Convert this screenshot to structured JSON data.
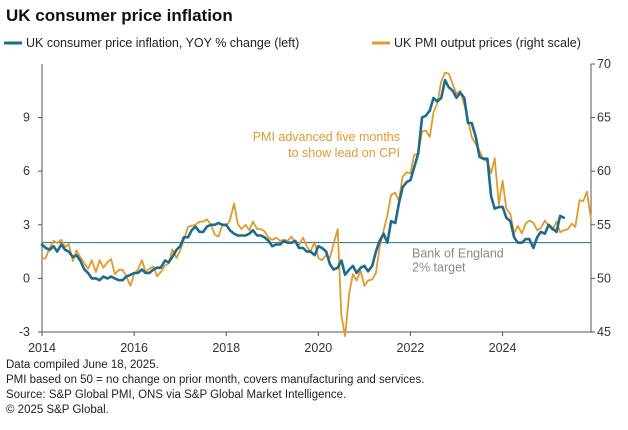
{
  "title": "UK consumer price inflation",
  "footer": {
    "line1": "Data compiled June 18, 2025.",
    "line2": "PMI based on 50 = no change on prior month, covers manufacturing and services.",
    "line3": "Source: S&P Global PMI,  ONS via S&P Global Market Intelligence.",
    "line4": "© 2025 S&P Global."
  },
  "colors": {
    "cpi": "#1e6b8c",
    "pmi": "#e09a2c",
    "ref": "#1e6b8c",
    "annotation": "#e09a2c",
    "ref_text": "#8a8a8a"
  },
  "chart_data": {
    "type": "line",
    "title": "UK consumer price inflation",
    "x_range": [
      2014.0,
      2025.92
    ],
    "x_ticks": [
      2014,
      2016,
      2018,
      2020,
      2022,
      2024
    ],
    "x_tick_labels": [
      "2014",
      "2016",
      "2018",
      "2020",
      "2022",
      "2024"
    ],
    "y_left": {
      "range": [
        -3,
        12
      ],
      "ticks": [
        -3,
        0,
        3,
        6,
        9
      ],
      "tick_labels": [
        "-3",
        "0",
        "3",
        "6",
        "9"
      ]
    },
    "y_right": {
      "range": [
        45,
        70
      ],
      "ticks": [
        45,
        50,
        55,
        60,
        65,
        70
      ],
      "tick_labels": [
        "45",
        "50",
        "55",
        "60",
        "65",
        "70"
      ]
    },
    "grid": false,
    "legend_position": "top",
    "series": [
      {
        "name": "UK consumer price inflation, YOY % change (left)",
        "axis": "left",
        "points": [
          [
            2014.0,
            1.9
          ],
          [
            2014.08,
            1.7
          ],
          [
            2014.17,
            1.6
          ],
          [
            2014.25,
            1.8
          ],
          [
            2014.33,
            1.5
          ],
          [
            2014.42,
            1.9
          ],
          [
            2014.5,
            1.6
          ],
          [
            2014.58,
            1.5
          ],
          [
            2014.67,
            1.2
          ],
          [
            2014.75,
            1.3
          ],
          [
            2014.83,
            1.0
          ],
          [
            2014.92,
            0.5
          ],
          [
            2015.0,
            0.3
          ],
          [
            2015.08,
            0.0
          ],
          [
            2015.17,
            0.0
          ],
          [
            2015.25,
            -0.1
          ],
          [
            2015.33,
            0.1
          ],
          [
            2015.42,
            0.0
          ],
          [
            2015.5,
            0.1
          ],
          [
            2015.58,
            0.0
          ],
          [
            2015.67,
            -0.1
          ],
          [
            2015.75,
            -0.1
          ],
          [
            2015.83,
            0.1
          ],
          [
            2015.92,
            0.2
          ],
          [
            2016.0,
            0.3
          ],
          [
            2016.08,
            0.3
          ],
          [
            2016.17,
            0.5
          ],
          [
            2016.25,
            0.3
          ],
          [
            2016.33,
            0.3
          ],
          [
            2016.42,
            0.5
          ],
          [
            2016.5,
            0.6
          ],
          [
            2016.58,
            0.6
          ],
          [
            2016.67,
            1.0
          ],
          [
            2016.75,
            0.9
          ],
          [
            2016.83,
            1.2
          ],
          [
            2016.92,
            1.6
          ],
          [
            2017.0,
            1.8
          ],
          [
            2017.08,
            2.3
          ],
          [
            2017.17,
            2.3
          ],
          [
            2017.25,
            2.7
          ],
          [
            2017.33,
            2.9
          ],
          [
            2017.42,
            2.6
          ],
          [
            2017.5,
            2.6
          ],
          [
            2017.58,
            2.9
          ],
          [
            2017.67,
            3.0
          ],
          [
            2017.75,
            3.0
          ],
          [
            2017.83,
            3.1
          ],
          [
            2017.92,
            3.0
          ],
          [
            2018.0,
            3.0
          ],
          [
            2018.08,
            2.7
          ],
          [
            2018.17,
            2.5
          ],
          [
            2018.25,
            2.4
          ],
          [
            2018.33,
            2.4
          ],
          [
            2018.42,
            2.4
          ],
          [
            2018.5,
            2.5
          ],
          [
            2018.58,
            2.7
          ],
          [
            2018.67,
            2.4
          ],
          [
            2018.75,
            2.4
          ],
          [
            2018.83,
            2.3
          ],
          [
            2018.92,
            2.1
          ],
          [
            2019.0,
            1.8
          ],
          [
            2019.08,
            1.9
          ],
          [
            2019.17,
            1.9
          ],
          [
            2019.25,
            2.1
          ],
          [
            2019.33,
            2.0
          ],
          [
            2019.42,
            2.0
          ],
          [
            2019.5,
            2.1
          ],
          [
            2019.58,
            1.7
          ],
          [
            2019.67,
            1.7
          ],
          [
            2019.75,
            1.5
          ],
          [
            2019.83,
            1.5
          ],
          [
            2019.92,
            1.3
          ],
          [
            2020.0,
            1.8
          ],
          [
            2020.08,
            1.7
          ],
          [
            2020.17,
            1.5
          ],
          [
            2020.25,
            0.8
          ],
          [
            2020.33,
            0.5
          ],
          [
            2020.42,
            0.6
          ],
          [
            2020.5,
            1.0
          ],
          [
            2020.58,
            0.2
          ],
          [
            2020.67,
            0.5
          ],
          [
            2020.75,
            0.7
          ],
          [
            2020.83,
            0.3
          ],
          [
            2020.92,
            0.6
          ],
          [
            2021.0,
            0.7
          ],
          [
            2021.08,
            0.4
          ],
          [
            2021.17,
            0.7
          ],
          [
            2021.25,
            1.5
          ],
          [
            2021.33,
            2.1
          ],
          [
            2021.42,
            2.5
          ],
          [
            2021.5,
            2.0
          ],
          [
            2021.58,
            3.2
          ],
          [
            2021.67,
            3.1
          ],
          [
            2021.75,
            4.2
          ],
          [
            2021.83,
            5.1
          ],
          [
            2021.92,
            5.4
          ],
          [
            2022.0,
            5.5
          ],
          [
            2022.08,
            6.2
          ],
          [
            2022.17,
            7.0
          ],
          [
            2022.25,
            9.0
          ],
          [
            2022.33,
            9.1
          ],
          [
            2022.42,
            9.4
          ],
          [
            2022.5,
            10.1
          ],
          [
            2022.58,
            9.9
          ],
          [
            2022.67,
            10.1
          ],
          [
            2022.75,
            11.1
          ],
          [
            2022.83,
            10.7
          ],
          [
            2022.92,
            10.5
          ],
          [
            2023.0,
            10.1
          ],
          [
            2023.08,
            10.4
          ],
          [
            2023.17,
            10.1
          ],
          [
            2023.25,
            8.7
          ],
          [
            2023.33,
            8.7
          ],
          [
            2023.42,
            7.9
          ],
          [
            2023.5,
            6.8
          ],
          [
            2023.58,
            6.7
          ],
          [
            2023.67,
            6.7
          ],
          [
            2023.75,
            4.6
          ],
          [
            2023.83,
            3.9
          ],
          [
            2023.92,
            4.0
          ],
          [
            2024.0,
            4.0
          ],
          [
            2024.08,
            3.4
          ],
          [
            2024.17,
            3.2
          ],
          [
            2024.25,
            2.3
          ],
          [
            2024.33,
            2.0
          ],
          [
            2024.42,
            2.0
          ],
          [
            2024.5,
            2.2
          ],
          [
            2024.58,
            2.2
          ],
          [
            2024.67,
            1.7
          ],
          [
            2024.75,
            2.3
          ],
          [
            2024.83,
            2.6
          ],
          [
            2024.92,
            2.5
          ],
          [
            2025.0,
            3.0
          ],
          [
            2025.08,
            2.8
          ],
          [
            2025.17,
            2.6
          ],
          [
            2025.25,
            3.5
          ],
          [
            2025.33,
            3.4
          ]
        ]
      },
      {
        "name": "UK PMI output prices (right scale)",
        "axis": "right",
        "points": [
          [
            2014.0,
            51.8
          ],
          [
            2014.08,
            51.9
          ],
          [
            2014.17,
            52.9
          ],
          [
            2014.25,
            53.5
          ],
          [
            2014.33,
            53.3
          ],
          [
            2014.42,
            53.6
          ],
          [
            2014.5,
            52.9
          ],
          [
            2014.58,
            53.2
          ],
          [
            2014.67,
            51.6
          ],
          [
            2014.75,
            52.6
          ],
          [
            2014.83,
            52.0
          ],
          [
            2014.92,
            51.4
          ],
          [
            2015.0,
            50.9
          ],
          [
            2015.08,
            51.7
          ],
          [
            2015.17,
            50.6
          ],
          [
            2015.25,
            51.7
          ],
          [
            2015.33,
            51.0
          ],
          [
            2015.42,
            51.5
          ],
          [
            2015.5,
            51.8
          ],
          [
            2015.58,
            50.4
          ],
          [
            2015.67,
            50.8
          ],
          [
            2015.75,
            50.8
          ],
          [
            2015.83,
            50.2
          ],
          [
            2015.92,
            49.3
          ],
          [
            2016.0,
            50.4
          ],
          [
            2016.08,
            50.8
          ],
          [
            2016.17,
            51.7
          ],
          [
            2016.25,
            50.6
          ],
          [
            2016.33,
            50.9
          ],
          [
            2016.42,
            51.1
          ],
          [
            2016.5,
            50.2
          ],
          [
            2016.58,
            50.6
          ],
          [
            2016.67,
            51.2
          ],
          [
            2016.75,
            51.4
          ],
          [
            2016.83,
            52.7
          ],
          [
            2016.92,
            51.9
          ],
          [
            2017.0,
            52.6
          ],
          [
            2017.08,
            53.6
          ],
          [
            2017.17,
            54.8
          ],
          [
            2017.25,
            54.9
          ],
          [
            2017.33,
            55.0
          ],
          [
            2017.42,
            55.3
          ],
          [
            2017.5,
            55.3
          ],
          [
            2017.58,
            55.5
          ],
          [
            2017.67,
            55.0
          ],
          [
            2017.75,
            54.1
          ],
          [
            2017.83,
            53.9
          ],
          [
            2017.92,
            55.0
          ],
          [
            2018.0,
            54.9
          ],
          [
            2018.08,
            55.4
          ],
          [
            2018.17,
            57.0
          ],
          [
            2018.25,
            55.1
          ],
          [
            2018.33,
            54.6
          ],
          [
            2018.42,
            55.0
          ],
          [
            2018.5,
            54.5
          ],
          [
            2018.58,
            55.3
          ],
          [
            2018.67,
            54.6
          ],
          [
            2018.75,
            54.6
          ],
          [
            2018.83,
            54.4
          ],
          [
            2018.92,
            53.8
          ],
          [
            2019.0,
            53.6
          ],
          [
            2019.08,
            53.8
          ],
          [
            2019.17,
            53.5
          ],
          [
            2019.25,
            53.6
          ],
          [
            2019.33,
            53.5
          ],
          [
            2019.42,
            53.9
          ],
          [
            2019.5,
            53.3
          ],
          [
            2019.58,
            53.1
          ],
          [
            2019.67,
            53.8
          ],
          [
            2019.75,
            53.0
          ],
          [
            2019.83,
            52.5
          ],
          [
            2019.92,
            53.4
          ],
          [
            2020.0,
            51.9
          ],
          [
            2020.08,
            51.7
          ],
          [
            2020.17,
            52.2
          ],
          [
            2020.25,
            51.9
          ],
          [
            2020.33,
            53.2
          ],
          [
            2020.42,
            54.6
          ],
          [
            2020.5,
            46.5
          ],
          [
            2020.58,
            44.6
          ],
          [
            2020.67,
            48.6
          ],
          [
            2020.75,
            50.4
          ],
          [
            2020.83,
            49.8
          ],
          [
            2020.92,
            50.7
          ],
          [
            2021.0,
            49.3
          ],
          [
            2021.08,
            49.8
          ],
          [
            2021.17,
            49.9
          ],
          [
            2021.25,
            50.5
          ],
          [
            2021.33,
            52.9
          ],
          [
            2021.42,
            54.5
          ],
          [
            2021.5,
            55.9
          ],
          [
            2021.58,
            57.8
          ],
          [
            2021.67,
            58.0
          ],
          [
            2021.75,
            57.2
          ],
          [
            2021.83,
            59.5
          ],
          [
            2021.92,
            59.9
          ],
          [
            2022.0,
            59.8
          ],
          [
            2022.08,
            61.5
          ],
          [
            2022.17,
            61.7
          ],
          [
            2022.25,
            63.7
          ],
          [
            2022.33,
            63.8
          ],
          [
            2022.42,
            63.2
          ],
          [
            2022.5,
            65.5
          ],
          [
            2022.58,
            66.3
          ],
          [
            2022.67,
            68.4
          ],
          [
            2022.75,
            69.2
          ],
          [
            2022.83,
            69.1
          ],
          [
            2022.92,
            68.1
          ],
          [
            2023.0,
            67.2
          ],
          [
            2023.08,
            67.5
          ],
          [
            2023.17,
            66.2
          ],
          [
            2023.25,
            64.8
          ],
          [
            2023.33,
            63.2
          ],
          [
            2023.42,
            62.5
          ],
          [
            2023.5,
            61.9
          ],
          [
            2023.58,
            61.1
          ],
          [
            2023.67,
            60.9
          ],
          [
            2023.75,
            59.8
          ],
          [
            2023.83,
            61.2
          ],
          [
            2023.92,
            56.9
          ],
          [
            2024.0,
            59.1
          ],
          [
            2024.08,
            56.5
          ],
          [
            2024.17,
            56.0
          ],
          [
            2024.25,
            54.2
          ],
          [
            2024.33,
            54.9
          ],
          [
            2024.42,
            54.2
          ],
          [
            2024.5,
            55.1
          ],
          [
            2024.58,
            55.4
          ],
          [
            2024.67,
            55.2
          ],
          [
            2024.75,
            54.5
          ],
          [
            2024.83,
            54.7
          ],
          [
            2024.92,
            55.4
          ],
          [
            2025.0,
            54.9
          ],
          [
            2025.08,
            54.5
          ],
          [
            2025.17,
            55.3
          ],
          [
            2025.25,
            54.3
          ],
          [
            2025.33,
            54.5
          ],
          [
            2025.42,
            54.6
          ],
          [
            2025.5,
            55.1
          ],
          [
            2025.58,
            54.8
          ],
          [
            2025.67,
            57.3
          ],
          [
            2025.75,
            57.2
          ],
          [
            2025.83,
            58.1
          ],
          [
            2025.92,
            55.5
          ]
        ]
      }
    ],
    "reference_line": {
      "axis": "left",
      "value": 2,
      "label_lines": [
        "Bank of England",
        "2% target"
      ]
    },
    "annotations": [
      {
        "text_lines": [
          "PMI advanced five months",
          "to show lead on CPI"
        ],
        "x": 2023.0,
        "y_left": 7.1
      }
    ]
  }
}
